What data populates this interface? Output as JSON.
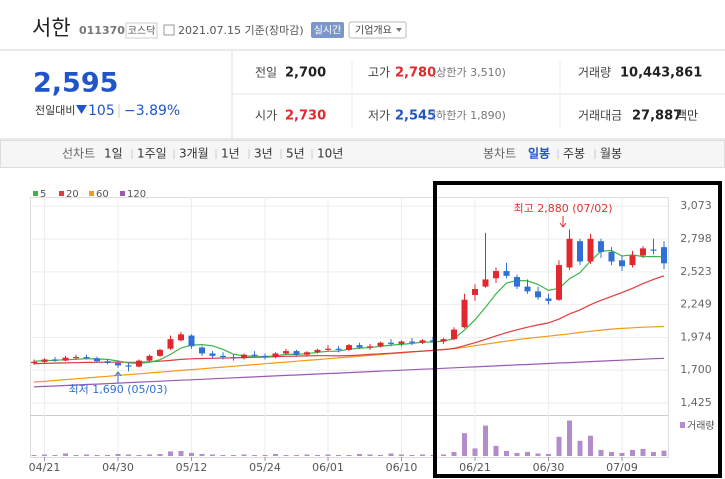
{
  "header": {
    "name": "서한",
    "code": "011370",
    "market": "코스닥",
    "date": "2021.07.15 기준(장마감)",
    "realtime": "실시간",
    "company_info": "기업개요"
  },
  "quote": {
    "price": "2,595",
    "change_label": "전일대비",
    "change": "105",
    "change_rate": "−3.89%",
    "table": [
      [
        {
          "label": "전일",
          "value": "2,700"
        },
        {
          "label": "고가",
          "value": "2,780",
          "note": "(상한가 3,510)"
        },
        {
          "label": "거래량",
          "value": "10,443,861"
        }
      ],
      [
        {
          "label": "시가",
          "value": "2,730"
        },
        {
          "label": "저가",
          "value": "2,545",
          "note": "(하한가 1,890)"
        },
        {
          "label": "거래대금",
          "value": "27,887",
          "unit": "백만"
        }
      ]
    ]
  },
  "tabs": {
    "line_chart": "선차트",
    "line_periods": [
      "1일",
      "1주일",
      "3개월",
      "1년",
      "3년",
      "5년",
      "10년"
    ],
    "candle_chart": "봉차트",
    "candle_periods": [
      "일봉",
      "주봉",
      "월봉"
    ]
  },
  "chart_data": {
    "type": "candlestick",
    "categories": [
      null,
      "04/21",
      null,
      null,
      null,
      null,
      null,
      null,
      "04/30",
      null,
      null,
      null,
      null,
      null,
      null,
      "05/12",
      null,
      null,
      null,
      null,
      null,
      null,
      "05/24",
      null,
      null,
      null,
      null,
      null,
      "06/01",
      null,
      null,
      null,
      null,
      null,
      null,
      "06/10",
      null,
      null,
      null,
      null,
      null,
      null,
      "06/21",
      null,
      null,
      null,
      null,
      null,
      null,
      "06/30",
      null,
      null,
      null,
      null,
      null,
      null,
      "07/09",
      null,
      null,
      null,
      null
    ],
    "open": [
      1760,
      1770,
      1790,
      1780,
      1800,
      1810,
      1800,
      1775,
      1760,
      1740,
      1730,
      1780,
      1820,
      1880,
      1950,
      1990,
      1890,
      1840,
      1820,
      1810,
      1800,
      1830,
      1820,
      1810,
      1840,
      1860,
      1830,
      1850,
      1870,
      1880,
      1870,
      1910,
      1890,
      1900,
      1930,
      1920,
      1940,
      1930,
      1950,
      1940,
      1960,
      2060,
      2330,
      2400,
      2470,
      2530,
      2480,
      2400,
      2360,
      2300,
      2290,
      2560,
      2780,
      2610,
      2780,
      2690,
      2620,
      2580,
      2660,
      2710,
      2730
    ],
    "high": [
      1790,
      1800,
      1810,
      1820,
      1830,
      1830,
      1815,
      1790,
      1780,
      1760,
      1790,
      1830,
      1880,
      1990,
      2020,
      2000,
      1900,
      1860,
      1850,
      1830,
      1840,
      1860,
      1840,
      1850,
      1880,
      1870,
      1860,
      1880,
      1910,
      1900,
      1920,
      1930,
      1920,
      1940,
      1960,
      1950,
      1970,
      1960,
      1980,
      1970,
      2060,
      2340,
      2420,
      2850,
      2560,
      2600,
      2500,
      2460,
      2400,
      2340,
      2620,
      2880,
      2800,
      2840,
      2800,
      2730,
      2660,
      2700,
      2740,
      2800,
      2780
    ],
    "low": [
      1745,
      1760,
      1770,
      1775,
      1790,
      1790,
      1760,
      1750,
      1720,
      1690,
      1725,
      1770,
      1810,
      1870,
      1940,
      1880,
      1820,
      1800,
      1790,
      1780,
      1790,
      1810,
      1790,
      1800,
      1830,
      1820,
      1820,
      1840,
      1860,
      1850,
      1860,
      1880,
      1870,
      1890,
      1900,
      1900,
      1910,
      1920,
      1930,
      1920,
      1950,
      2050,
      2280,
      2390,
      2430,
      2470,
      2380,
      2340,
      2290,
      2250,
      2280,
      2540,
      2580,
      2590,
      2640,
      2580,
      2530,
      2560,
      2640,
      2670,
      2545
    ],
    "close": [
      1770,
      1790,
      1780,
      1805,
      1810,
      1800,
      1775,
      1760,
      1740,
      1730,
      1780,
      1820,
      1870,
      1960,
      2000,
      1900,
      1840,
      1820,
      1810,
      1800,
      1830,
      1820,
      1810,
      1840,
      1860,
      1830,
      1850,
      1870,
      1880,
      1870,
      1910,
      1890,
      1900,
      1930,
      1920,
      1940,
      1930,
      1950,
      1940,
      1960,
      2040,
      2290,
      2380,
      2460,
      2530,
      2490,
      2400,
      2360,
      2310,
      2280,
      2580,
      2800,
      2610,
      2800,
      2690,
      2610,
      2570,
      2660,
      2720,
      2700,
      2595
    ],
    "volume": [
      2000000,
      3000000,
      2000000,
      5000000,
      2000000,
      3000000,
      2000000,
      2000000,
      4000000,
      3000000,
      2000000,
      3000000,
      4000000,
      9000000,
      10000000,
      6000000,
      4000000,
      3000000,
      2000000,
      2000000,
      3000000,
      2000000,
      2000000,
      4000000,
      2000000,
      2000000,
      3000000,
      2000000,
      3000000,
      2000000,
      2000000,
      4000000,
      3000000,
      2000000,
      5000000,
      3000000,
      2000000,
      3000000,
      2000000,
      3000000,
      8000000,
      45000000,
      15000000,
      60000000,
      20000000,
      10000000,
      6000000,
      8000000,
      5000000,
      4000000,
      38000000,
      70000000,
      30000000,
      40000000,
      12000000,
      8000000,
      6000000,
      12000000,
      14000000,
      8000000,
      10443861
    ],
    "volume_label": "거래량",
    "volume_ylim": [
      0,
      75000000
    ],
    "volume_color": "#b28ccb",
    "up_color": "#e0282e",
    "down_color": "#2f6fd6",
    "series": [
      {
        "name": "5",
        "color": "#3bb54a",
        "values": [
          1775,
          1780,
          1783,
          1788,
          1791,
          1797,
          1794,
          1790,
          1777,
          1761,
          1757,
          1766,
          1788,
          1832,
          1886,
          1910,
          1914,
          1904,
          1874,
          1834,
          1820,
          1816,
          1814,
          1820,
          1832,
          1832,
          1838,
          1850,
          1858,
          1860,
          1876,
          1884,
          1890,
          1900,
          1910,
          1916,
          1924,
          1934,
          1936,
          1944,
          1964,
          2036,
          2122,
          2226,
          2340,
          2430,
          2452,
          2448,
          2418,
          2368,
          2386,
          2466,
          2516,
          2614,
          2696,
          2702,
          2656,
          2666,
          2650,
          2652,
          2649
        ]
      },
      {
        "name": "20",
        "color": "#e23b3b",
        "values": [
          1755,
          1757,
          1759,
          1761,
          1763,
          1765,
          1766,
          1767,
          1767,
          1766,
          1767,
          1770,
          1775,
          1782,
          1790,
          1795,
          1798,
          1800,
          1802,
          1803,
          1806,
          1808,
          1810,
          1813,
          1816,
          1818,
          1820,
          1821,
          1821,
          1820,
          1822,
          1826,
          1832,
          1837,
          1842,
          1848,
          1855,
          1860,
          1866,
          1872,
          1882,
          1905,
          1930,
          1958,
          1987,
          2014,
          2038,
          2060,
          2079,
          2096,
          2128,
          2171,
          2205,
          2248,
          2285,
          2318,
          2350,
          2386,
          2425,
          2460,
          2490
        ]
      },
      {
        "name": "60",
        "color": "#f29a1a",
        "values": [
          1600,
          1607,
          1614,
          1621,
          1628,
          1635,
          1642,
          1649,
          1656,
          1663,
          1670,
          1677,
          1684,
          1691,
          1698,
          1705,
          1712,
          1719,
          1726,
          1733,
          1740,
          1747,
          1754,
          1761,
          1768,
          1775,
          1782,
          1789,
          1796,
          1803,
          1810,
          1817,
          1824,
          1831,
          1838,
          1845,
          1852,
          1859,
          1866,
          1873,
          1880,
          1892,
          1905,
          1918,
          1931,
          1944,
          1956,
          1966,
          1976,
          1985,
          1995,
          2005,
          2016,
          2026,
          2036,
          2044,
          2050,
          2055,
          2060,
          2063,
          2066
        ]
      },
      {
        "name": "120",
        "color": "#9b59b6",
        "values": [
          1560,
          1564,
          1568,
          1572,
          1576,
          1580,
          1584,
          1588,
          1592,
          1596,
          1600,
          1604,
          1608,
          1612,
          1616,
          1620,
          1624,
          1628,
          1632,
          1636,
          1640,
          1644,
          1648,
          1652,
          1656,
          1660,
          1664,
          1668,
          1672,
          1676,
          1680,
          1684,
          1688,
          1692,
          1696,
          1700,
          1704,
          1708,
          1712,
          1716,
          1720,
          1724,
          1728,
          1732,
          1736,
          1740,
          1744,
          1748,
          1752,
          1756,
          1760,
          1764,
          1768,
          1772,
          1776,
          1780,
          1784,
          1788,
          1792,
          1796,
          1800
        ]
      }
    ],
    "ylim": [
      1350,
      3150
    ],
    "yticks": [
      {
        "value": 1425,
        "label": "1,425"
      },
      {
        "value": 1700,
        "label": "1,700"
      },
      {
        "value": 1974,
        "label": "1,974"
      },
      {
        "value": 2249,
        "label": "2,249"
      },
      {
        "value": 2523,
        "label": "2,523"
      },
      {
        "value": 2798,
        "label": "2,798"
      },
      {
        "value": 3073,
        "label": "3,073"
      }
    ],
    "grid": true,
    "annotations": [
      "최고 2,880 (07/02)",
      "최저 1,690 (05/03)"
    ]
  }
}
